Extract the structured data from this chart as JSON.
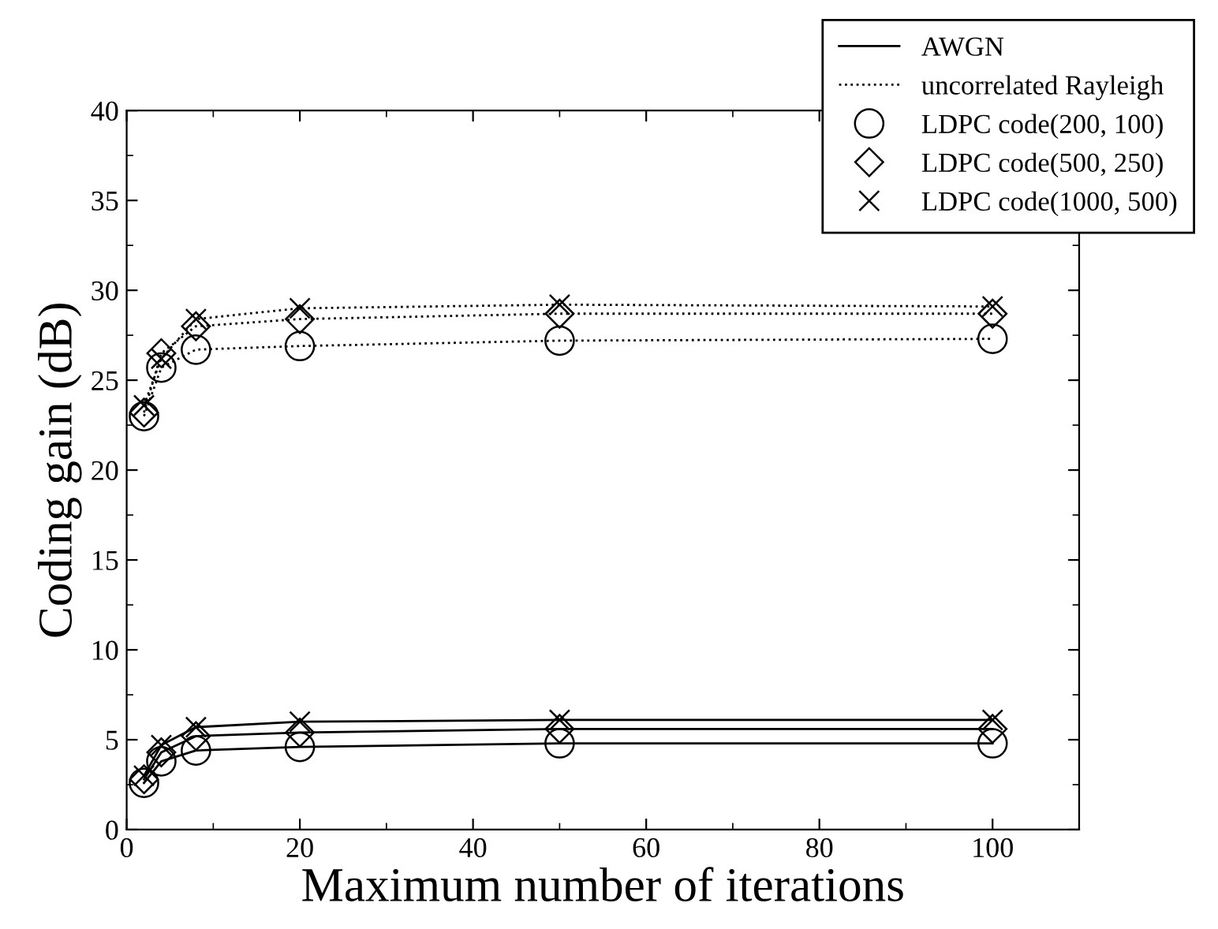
{
  "chart_data": {
    "type": "line",
    "xlabel": "Maximum number of iterations",
    "ylabel": "Coding gain (dB)",
    "xlim": [
      0,
      110
    ],
    "xticks": [
      0,
      20,
      40,
      60,
      80,
      100
    ],
    "ylim": [
      0,
      40
    ],
    "yticks": [
      0,
      5,
      10,
      15,
      20,
      25,
      30,
      35,
      40
    ],
    "grid": false,
    "legend": "top right",
    "series": [
      {
        "name": "AWGN",
        "line_style": "solid",
        "marker": "none",
        "color": "#000000",
        "x": [
          2,
          4,
          8,
          20,
          50,
          100
        ],
        "values": [
          2.6,
          3.8,
          4.4,
          4.6,
          4.8,
          4.8
        ]
      },
      {
        "line_style": "solid",
        "marker": "none",
        "color": "#000000",
        "x": [
          2,
          4,
          8,
          20,
          50,
          100
        ],
        "values": [
          2.8,
          4.3,
          5.2,
          5.4,
          5.6,
          5.6
        ]
      },
      {
        "line_style": "solid",
        "marker": "none",
        "color": "#000000",
        "x": [
          2,
          4,
          8,
          20,
          50,
          100
        ],
        "values": [
          3.0,
          4.7,
          5.7,
          6.0,
          6.1,
          6.1
        ]
      },
      {
        "name": "uncorrelated Rayleigh",
        "line_style": "dotted",
        "marker": "none",
        "color": "#000000",
        "x": [
          2,
          4,
          8,
          20,
          50,
          100
        ],
        "values": [
          23.0,
          25.7,
          26.7,
          26.9,
          27.2,
          27.3
        ]
      },
      {
        "line_style": "dotted",
        "marker": "none",
        "color": "#000000",
        "x": [
          2,
          4,
          8,
          20,
          50,
          100
        ],
        "values": [
          23.2,
          26.5,
          28.0,
          28.4,
          28.7,
          28.7
        ]
      },
      {
        "line_style": "dotted",
        "marker": "none",
        "color": "#000000",
        "x": [
          2,
          4,
          8,
          20,
          50,
          100
        ],
        "values": [
          23.6,
          26.2,
          28.4,
          29.0,
          29.2,
          29.1
        ]
      },
      {
        "name": "LDPC code(200, 100)",
        "type": "scatter",
        "marker": "circle",
        "color": "#000000",
        "x": [
          2,
          4,
          8,
          20,
          50,
          100,
          2,
          4,
          8,
          20,
          50,
          100
        ],
        "values": [
          2.6,
          3.8,
          4.4,
          4.6,
          4.8,
          4.8,
          23.0,
          25.7,
          26.7,
          26.9,
          27.2,
          27.3
        ]
      },
      {
        "name": "LDPC code(500, 250)",
        "type": "scatter",
        "marker": "diamond",
        "color": "#000000",
        "x": [
          2,
          4,
          8,
          20,
          50,
          100,
          2,
          4,
          8,
          20,
          50,
          100
        ],
        "values": [
          2.8,
          4.3,
          5.2,
          5.4,
          5.6,
          5.6,
          23.2,
          26.5,
          28.0,
          28.4,
          28.7,
          28.7
        ]
      },
      {
        "name": "LDPC code(1000, 500)",
        "type": "scatter",
        "marker": "cross",
        "color": "#000000",
        "x": [
          2,
          4,
          8,
          20,
          50,
          100,
          2,
          4,
          8,
          20,
          50,
          100
        ],
        "values": [
          3.0,
          4.7,
          5.7,
          6.0,
          6.1,
          6.1,
          23.6,
          26.2,
          28.4,
          29.0,
          29.2,
          29.1
        ]
      }
    ]
  }
}
